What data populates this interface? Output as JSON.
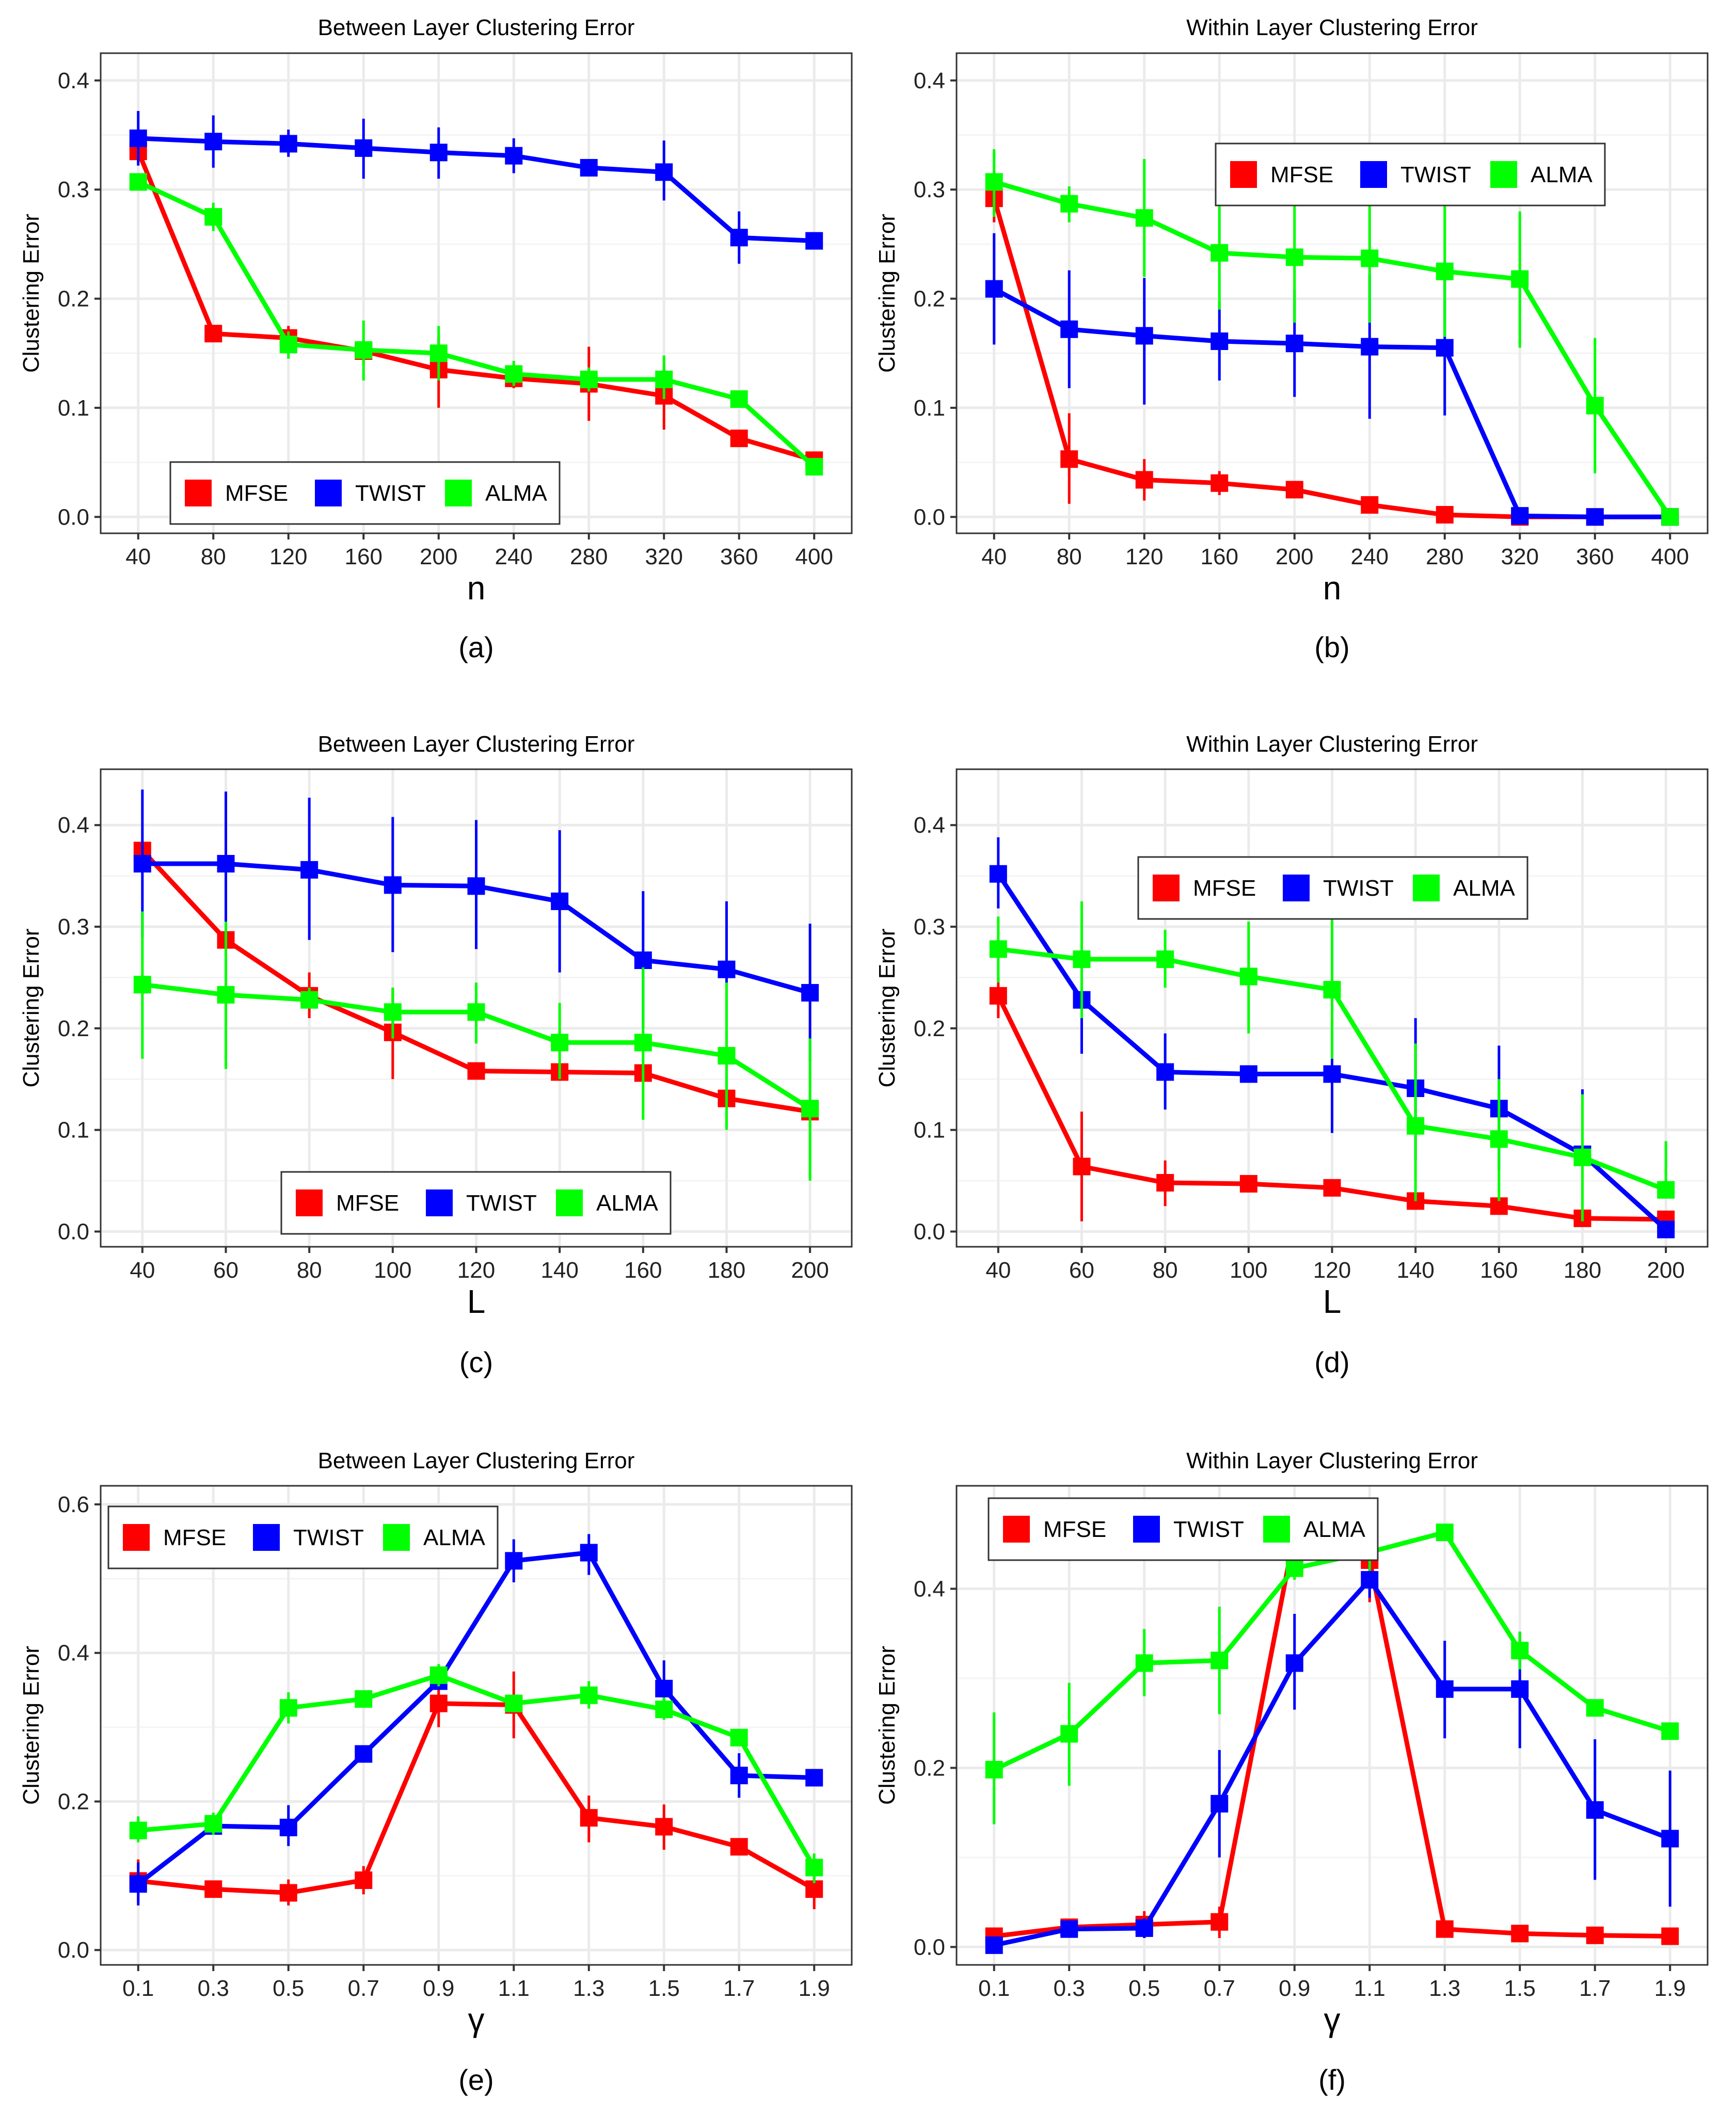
{
  "figure": {
    "panels": [
      "a",
      "b",
      "c",
      "d",
      "e",
      "f"
    ]
  },
  "colors": {
    "MFSE": "#ff0000",
    "TWIST": "#0000ff",
    "ALMA": "#00ff00",
    "grid_major": "#ebebeb",
    "grid_minor": "#f4f4f4",
    "panel_border": "#333333"
  },
  "chart_data": [
    {
      "id": "a",
      "type": "line",
      "title": "Between Layer Clustering Error",
      "xlabel": "n",
      "ylabel": "Clustering Error",
      "caption": "(a)",
      "categories": [
        "40",
        "80",
        "120",
        "160",
        "200",
        "240",
        "280",
        "320",
        "360",
        "400"
      ],
      "ylim": [
        -0.015,
        0.425
      ],
      "yticks": [
        0.0,
        0.1,
        0.2,
        0.3,
        0.4
      ],
      "ytick_labels": [
        "0.0",
        "0.1",
        "0.2",
        "0.3",
        "0.4"
      ],
      "legend": {
        "position": "bottom-left"
      },
      "series": [
        {
          "name": "MFSE",
          "values": [
            0.335,
            0.168,
            0.164,
            0.152,
            0.135,
            0.127,
            0.122,
            0.111,
            0.072,
            0.052
          ],
          "err_lo": [
            0.325,
            0.168,
            0.15,
            0.14,
            0.1,
            0.118,
            0.088,
            0.08,
            0.072,
            0.045
          ],
          "err_hi": [
            0.345,
            0.168,
            0.175,
            0.162,
            0.165,
            0.136,
            0.156,
            0.142,
            0.072,
            0.06
          ]
        },
        {
          "name": "TWIST",
          "values": [
            0.347,
            0.344,
            0.342,
            0.338,
            0.334,
            0.331,
            0.32,
            0.316,
            0.256,
            0.253
          ],
          "err_lo": [
            0.322,
            0.32,
            0.33,
            0.31,
            0.31,
            0.315,
            0.32,
            0.29,
            0.232,
            0.253
          ],
          "err_hi": [
            0.372,
            0.368,
            0.355,
            0.365,
            0.357,
            0.347,
            0.32,
            0.345,
            0.28,
            0.253
          ]
        },
        {
          "name": "ALMA",
          "values": [
            0.307,
            0.275,
            0.158,
            0.153,
            0.15,
            0.131,
            0.126,
            0.126,
            0.108,
            0.046
          ],
          "err_lo": [
            0.307,
            0.262,
            0.145,
            0.125,
            0.125,
            0.12,
            0.115,
            0.108,
            0.108,
            0.046
          ],
          "err_hi": [
            0.307,
            0.288,
            0.17,
            0.18,
            0.175,
            0.143,
            0.137,
            0.148,
            0.108,
            0.046
          ]
        }
      ]
    },
    {
      "id": "b",
      "type": "line",
      "title": "Within Layer Clustering Error",
      "xlabel": "n",
      "ylabel": "Clustering Error",
      "caption": "(b)",
      "categories": [
        "40",
        "80",
        "120",
        "160",
        "200",
        "240",
        "280",
        "320",
        "360",
        "400"
      ],
      "ylim": [
        -0.015,
        0.425
      ],
      "yticks": [
        0.0,
        0.1,
        0.2,
        0.3,
        0.4
      ],
      "ytick_labels": [
        "0.0",
        "0.1",
        "0.2",
        "0.3",
        "0.4"
      ],
      "legend": {
        "position": "top-center"
      },
      "series": [
        {
          "name": "MFSE",
          "values": [
            0.292,
            0.053,
            0.034,
            0.031,
            0.025,
            0.011,
            0.002,
            0.0,
            0.0,
            0.0
          ],
          "err_lo": [
            0.27,
            0.012,
            0.015,
            0.02,
            0.018,
            0.006,
            0.002,
            0.0,
            0.0,
            0.0
          ],
          "err_hi": [
            0.31,
            0.095,
            0.053,
            0.042,
            0.032,
            0.016,
            0.002,
            0.0,
            0.0,
            0.0
          ]
        },
        {
          "name": "TWIST",
          "values": [
            0.209,
            0.172,
            0.166,
            0.161,
            0.159,
            0.156,
            0.155,
            0.001,
            0.0,
            0.0
          ],
          "err_lo": [
            0.158,
            0.118,
            0.103,
            0.125,
            0.11,
            0.09,
            0.093,
            0.001,
            0.0,
            0.0
          ],
          "err_hi": [
            0.26,
            0.226,
            0.219,
            0.197,
            0.208,
            0.222,
            0.217,
            0.001,
            0.0,
            0.0
          ]
        },
        {
          "name": "ALMA",
          "values": [
            0.307,
            0.287,
            0.274,
            0.242,
            0.238,
            0.237,
            0.225,
            0.218,
            0.102,
            0.0
          ],
          "err_lo": [
            0.275,
            0.27,
            0.22,
            0.19,
            0.178,
            0.178,
            0.165,
            0.155,
            0.04,
            0.0
          ],
          "err_hi": [
            0.337,
            0.303,
            0.328,
            0.295,
            0.295,
            0.295,
            0.285,
            0.28,
            0.164,
            0.0
          ]
        }
      ]
    },
    {
      "id": "c",
      "type": "line",
      "title": "Between Layer Clustering Error",
      "xlabel": "L",
      "ylabel": "Clustering Error",
      "caption": "(c)",
      "categories": [
        "40",
        "60",
        "80",
        "100",
        "120",
        "140",
        "160",
        "180",
        "200"
      ],
      "ylim": [
        -0.015,
        0.455
      ],
      "yticks": [
        0.0,
        0.1,
        0.2,
        0.3,
        0.4
      ],
      "ytick_labels": [
        "0.0",
        "0.1",
        "0.2",
        "0.3",
        "0.4"
      ],
      "legend": {
        "position": "bottom-center"
      },
      "series": [
        {
          "name": "MFSE",
          "values": [
            0.375,
            0.287,
            0.232,
            0.196,
            0.158,
            0.157,
            0.156,
            0.131,
            0.118
          ],
          "err_lo": [
            0.365,
            0.28,
            0.21,
            0.15,
            0.158,
            0.157,
            0.156,
            0.131,
            0.118
          ],
          "err_hi": [
            0.385,
            0.294,
            0.255,
            0.24,
            0.158,
            0.157,
            0.156,
            0.131,
            0.118
          ]
        },
        {
          "name": "TWIST",
          "values": [
            0.362,
            0.362,
            0.356,
            0.341,
            0.34,
            0.325,
            0.267,
            0.258,
            0.235
          ],
          "err_lo": [
            0.29,
            0.29,
            0.287,
            0.275,
            0.278,
            0.255,
            0.2,
            0.192,
            0.168
          ],
          "err_hi": [
            0.435,
            0.433,
            0.427,
            0.408,
            0.405,
            0.395,
            0.335,
            0.325,
            0.303
          ]
        },
        {
          "name": "ALMA",
          "values": [
            0.243,
            0.233,
            0.228,
            0.216,
            0.216,
            0.186,
            0.186,
            0.173,
            0.121
          ],
          "err_lo": [
            0.17,
            0.16,
            0.22,
            0.19,
            0.185,
            0.15,
            0.11,
            0.1,
            0.05
          ],
          "err_hi": [
            0.315,
            0.305,
            0.24,
            0.24,
            0.245,
            0.225,
            0.26,
            0.245,
            0.19
          ]
        }
      ]
    },
    {
      "id": "d",
      "type": "line",
      "title": "Within Layer Clustering Error",
      "xlabel": "L",
      "ylabel": "Clustering Error",
      "caption": "(d)",
      "categories": [
        "40",
        "60",
        "80",
        "100",
        "120",
        "140",
        "160",
        "180",
        "200"
      ],
      "ylim": [
        -0.015,
        0.455
      ],
      "yticks": [
        0.0,
        0.1,
        0.2,
        0.3,
        0.4
      ],
      "ytick_labels": [
        "0.0",
        "0.1",
        "0.2",
        "0.3",
        "0.4"
      ],
      "legend": {
        "position": "top-center"
      },
      "series": [
        {
          "name": "MFSE",
          "values": [
            0.232,
            0.064,
            0.048,
            0.047,
            0.043,
            0.03,
            0.025,
            0.013,
            0.012
          ],
          "err_lo": [
            0.21,
            0.01,
            0.025,
            0.047,
            0.043,
            0.03,
            0.025,
            0.01,
            0.012
          ],
          "err_hi": [
            0.25,
            0.118,
            0.07,
            0.047,
            0.043,
            0.03,
            0.025,
            0.016,
            0.012
          ]
        },
        {
          "name": "TWIST",
          "values": [
            0.352,
            0.228,
            0.157,
            0.155,
            0.155,
            0.141,
            0.121,
            0.076,
            0.002
          ],
          "err_lo": [
            0.318,
            0.175,
            0.12,
            0.155,
            0.097,
            0.07,
            0.06,
            0.01,
            0.002
          ],
          "err_hi": [
            0.388,
            0.28,
            0.195,
            0.155,
            0.21,
            0.21,
            0.183,
            0.14,
            0.002
          ]
        },
        {
          "name": "ALMA",
          "values": [
            0.278,
            0.268,
            0.268,
            0.251,
            0.238,
            0.104,
            0.091,
            0.073,
            0.041
          ],
          "err_lo": [
            0.245,
            0.21,
            0.24,
            0.195,
            0.17,
            0.03,
            0.03,
            0.01,
            0.035
          ],
          "err_hi": [
            0.31,
            0.325,
            0.297,
            0.305,
            0.31,
            0.185,
            0.15,
            0.135,
            0.089
          ]
        }
      ]
    },
    {
      "id": "e",
      "type": "line",
      "title": "Between Layer Clustering Error",
      "xlabel": "γ",
      "ylabel": "Clustering Error",
      "caption": "(e)",
      "categories": [
        "0.1",
        "0.3",
        "0.5",
        "0.7",
        "0.9",
        "1.1",
        "1.3",
        "1.5",
        "1.7",
        "1.9"
      ],
      "ylim": [
        -0.02,
        0.625
      ],
      "yticks": [
        0.0,
        0.2,
        0.4,
        0.6
      ],
      "ytick_labels": [
        "0.0",
        "0.2",
        "0.4",
        "0.6"
      ],
      "legend": {
        "position": "top-left"
      },
      "series": [
        {
          "name": "MFSE",
          "values": [
            0.093,
            0.082,
            0.077,
            0.094,
            0.332,
            0.33,
            0.178,
            0.166,
            0.139,
            0.082
          ],
          "err_lo": [
            0.065,
            0.082,
            0.06,
            0.075,
            0.3,
            0.285,
            0.145,
            0.135,
            0.139,
            0.055
          ],
          "err_hi": [
            0.122,
            0.082,
            0.095,
            0.113,
            0.365,
            0.375,
            0.208,
            0.196,
            0.139,
            0.112
          ]
        },
        {
          "name": "TWIST",
          "values": [
            0.089,
            0.167,
            0.165,
            0.264,
            0.362,
            0.524,
            0.535,
            0.352,
            0.235,
            0.232
          ],
          "err_lo": [
            0.06,
            0.167,
            0.14,
            0.264,
            0.362,
            0.495,
            0.505,
            0.32,
            0.205,
            0.232
          ],
          "err_hi": [
            0.118,
            0.167,
            0.195,
            0.264,
            0.362,
            0.553,
            0.56,
            0.39,
            0.265,
            0.232
          ]
        },
        {
          "name": "ALMA",
          "values": [
            0.161,
            0.17,
            0.326,
            0.338,
            0.37,
            0.332,
            0.343,
            0.324,
            0.286,
            0.111
          ],
          "err_lo": [
            0.145,
            0.155,
            0.305,
            0.338,
            0.355,
            0.332,
            0.325,
            0.31,
            0.286,
            0.09
          ],
          "err_hi": [
            0.18,
            0.185,
            0.347,
            0.338,
            0.385,
            0.332,
            0.362,
            0.34,
            0.286,
            0.13
          ]
        }
      ]
    },
    {
      "id": "f",
      "type": "line",
      "title": "Within Layer Clustering Error",
      "xlabel": "γ",
      "ylabel": "Clustering Error",
      "caption": "(f)",
      "categories": [
        "0.1",
        "0.3",
        "0.5",
        "0.7",
        "0.9",
        "1.1",
        "1.3",
        "1.5",
        "1.7",
        "1.9"
      ],
      "ylim": [
        -0.02,
        0.515
      ],
      "yticks": [
        0.0,
        0.2,
        0.4
      ],
      "ytick_labels": [
        "0.0",
        "0.2",
        "0.4"
      ],
      "legend": {
        "position": "top-left"
      },
      "series": [
        {
          "name": "MFSE",
          "values": [
            0.012,
            0.022,
            0.025,
            0.028,
            0.462,
            0.432,
            0.02,
            0.015,
            0.013,
            0.012
          ],
          "err_lo": [
            0.012,
            0.022,
            0.01,
            0.01,
            0.44,
            0.385,
            0.02,
            0.015,
            0.013,
            0.012
          ],
          "err_hi": [
            0.012,
            0.022,
            0.04,
            0.045,
            0.49,
            0.475,
            0.02,
            0.015,
            0.013,
            0.012
          ]
        },
        {
          "name": "TWIST",
          "values": [
            0.002,
            0.02,
            0.021,
            0.16,
            0.317,
            0.41,
            0.288,
            0.288,
            0.153,
            0.121
          ],
          "err_lo": [
            0.002,
            0.02,
            0.01,
            0.1,
            0.265,
            0.39,
            0.233,
            0.222,
            0.075,
            0.045
          ],
          "err_hi": [
            0.002,
            0.02,
            0.032,
            0.22,
            0.372,
            0.43,
            0.342,
            0.352,
            0.232,
            0.197
          ]
        },
        {
          "name": "ALMA",
          "values": [
            0.198,
            0.238,
            0.317,
            0.32,
            0.423,
            0.441,
            0.463,
            0.331,
            0.267,
            0.241
          ],
          "err_lo": [
            0.137,
            0.18,
            0.28,
            0.26,
            0.41,
            0.42,
            0.455,
            0.31,
            0.267,
            0.241
          ],
          "err_hi": [
            0.262,
            0.295,
            0.355,
            0.38,
            0.436,
            0.462,
            0.471,
            0.352,
            0.267,
            0.241
          ]
        }
      ]
    }
  ]
}
